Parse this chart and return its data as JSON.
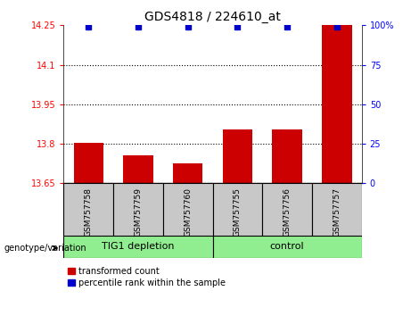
{
  "title": "GDS4818 / 224610_at",
  "samples": [
    "GSM757758",
    "GSM757759",
    "GSM757760",
    "GSM757755",
    "GSM757756",
    "GSM757757"
  ],
  "red_values": [
    13.805,
    13.755,
    13.725,
    13.855,
    13.855,
    14.25
  ],
  "ylim_left": [
    13.65,
    14.25
  ],
  "ylim_right": [
    0,
    100
  ],
  "yticks_left": [
    13.65,
    13.8,
    13.95,
    14.1,
    14.25
  ],
  "yticks_right": [
    0,
    25,
    50,
    75,
    100
  ],
  "ytick_labels_left": [
    "13.65",
    "13.8",
    "13.95",
    "14.1",
    "14.25"
  ],
  "ytick_labels_right": [
    "0",
    "25",
    "50",
    "75",
    "100%"
  ],
  "hlines": [
    13.8,
    13.95,
    14.1
  ],
  "group1_label": "TIG1 depletion",
  "group2_label": "control",
  "group1_indices": [
    0,
    1,
    2
  ],
  "group2_indices": [
    3,
    4,
    5
  ],
  "group_color": "#90EE90",
  "bar_color_red": "#CC0000",
  "bar_color_blue": "#0000CC",
  "sample_bg_color": "#C8C8C8",
  "legend_red_label": "transformed count",
  "legend_blue_label": "percentile rank within the sample",
  "genotype_label": "genotype/variation",
  "bar_width": 0.6,
  "title_fontsize": 10,
  "tick_fontsize": 7,
  "label_fontsize": 8,
  "legend_fontsize": 7
}
